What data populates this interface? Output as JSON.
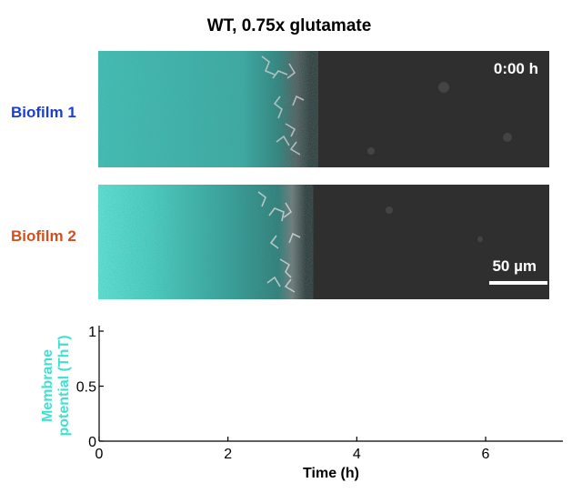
{
  "title": "WT, 0.75x glutamate",
  "rows": [
    {
      "label": "Biofilm 1",
      "color": "#1a3fd0"
    },
    {
      "label": "Biofilm 2",
      "color": "#d2501e"
    }
  ],
  "timestamp": "0:00 h",
  "scale_bar": "50 µm",
  "plot": {
    "ylabel_line1": "Membrane",
    "ylabel_line2": "potential (ThT)",
    "xlabel": "Time (h)",
    "yticks": [
      "0",
      "0.5",
      "1"
    ],
    "xticks": [
      "0",
      "2",
      "4",
      "6"
    ],
    "xlim": [
      0,
      7.2
    ],
    "ylim": [
      0,
      1.05
    ],
    "line_color": "#40e0d0"
  },
  "colors": {
    "cyan": "#40e0d0",
    "background": "#2f2f2f"
  }
}
